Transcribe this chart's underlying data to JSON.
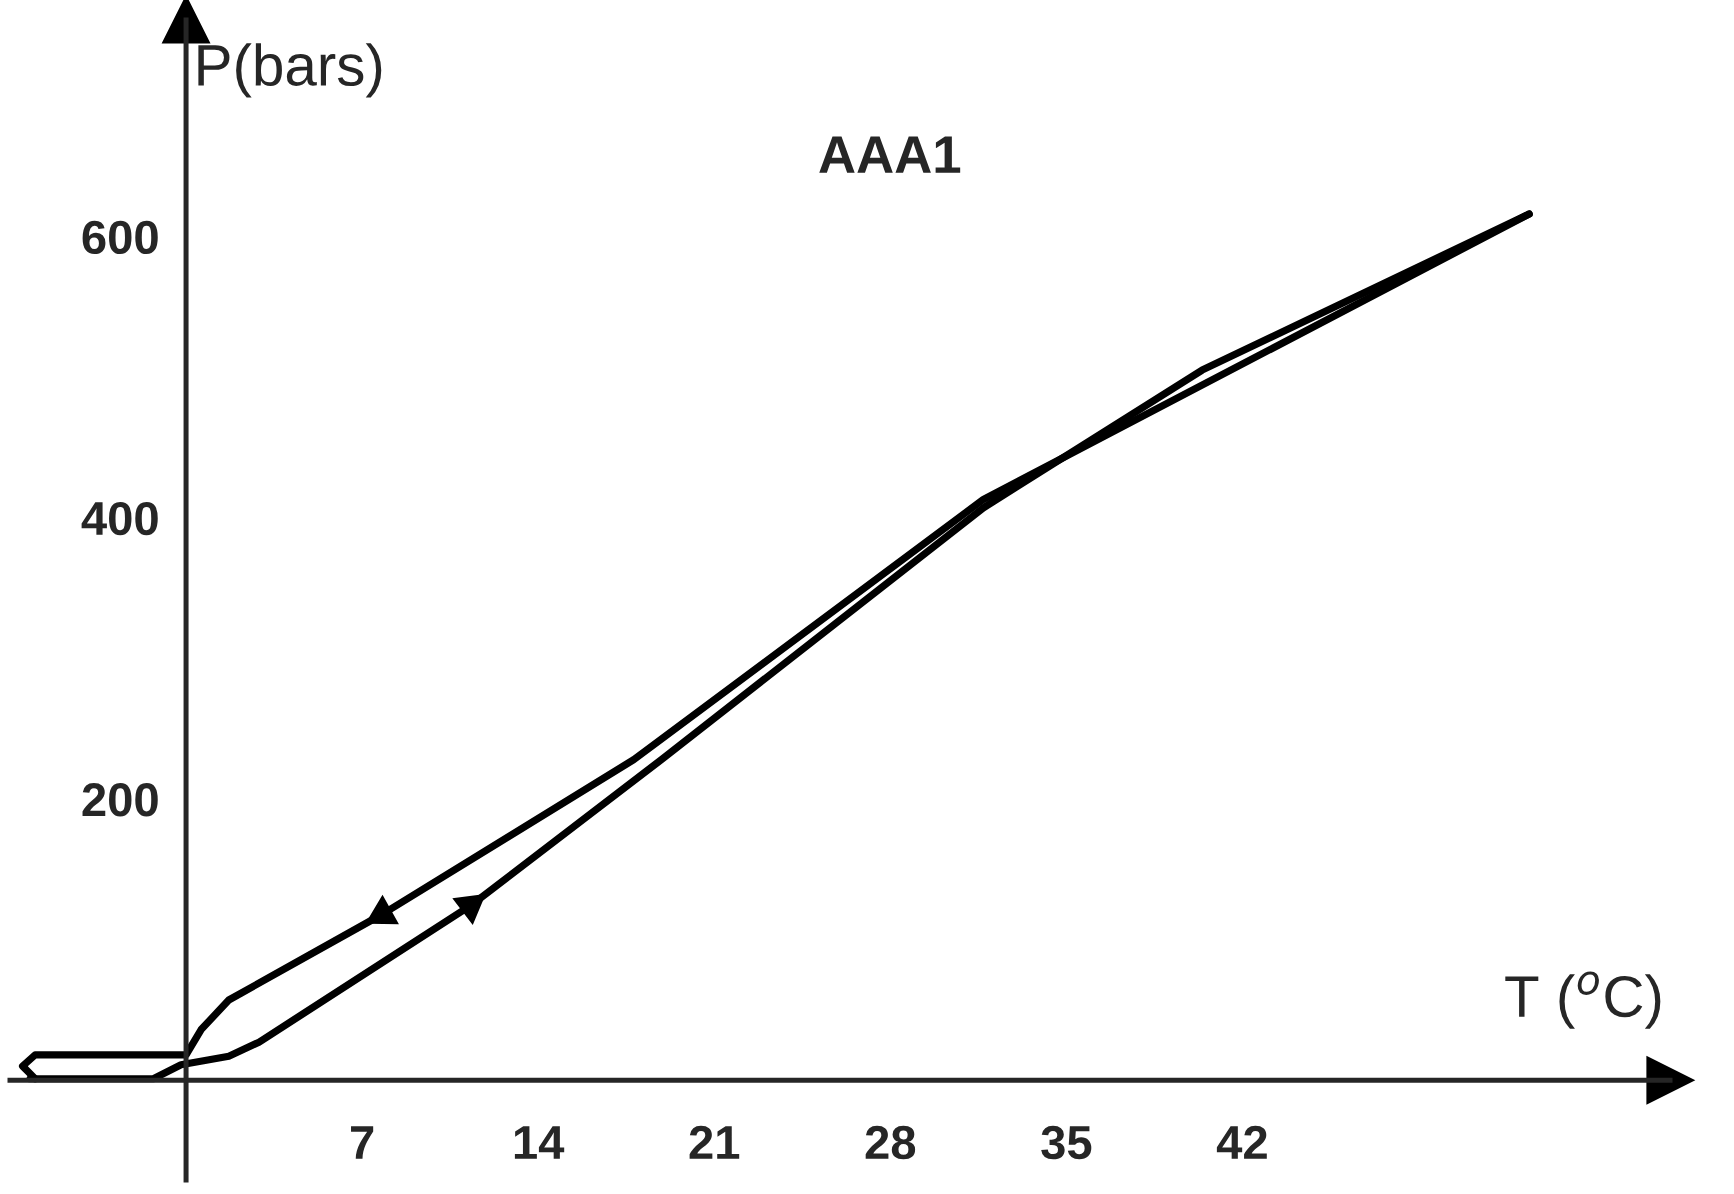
{
  "chart_data": {
    "type": "line",
    "title": "AAA1",
    "xlabel": "T ($^{o}$C)",
    "ylabel": "P(bars)",
    "series": [
      {
        "color": "#000000",
        "x": [
          -6.2,
          -1.3,
          -0.2,
          1.7,
          2.9,
          11.3,
          18.9,
          31.7,
          40.4,
          53.4
        ],
        "values": [
          1,
          1,
          11,
          17,
          27,
          124,
          228,
          407,
          505,
          616
        ]
      },
      {
        "color": "#000000",
        "x": [
          53.4,
          31.7,
          17.8,
          7.8,
          1.7,
          0.6,
          0,
          -2.2,
          -6.0,
          -6.5,
          -6.0
        ],
        "values": [
          616,
          413,
          228,
          118,
          57,
          36,
          18,
          18,
          18,
          10,
          1
        ]
      }
    ],
    "xlim": [
      -7,
      59
    ],
    "ylim": [
      -71,
      754
    ],
    "xticks": [
      {
        "value": 0,
        "label": null
      },
      7,
      14,
      21,
      28,
      35,
      42
    ],
    "yticks": [
      200,
      400,
      600
    ],
    "grid": false,
    "legend": false,
    "marker": "none",
    "line_style": "solid"
  }
}
